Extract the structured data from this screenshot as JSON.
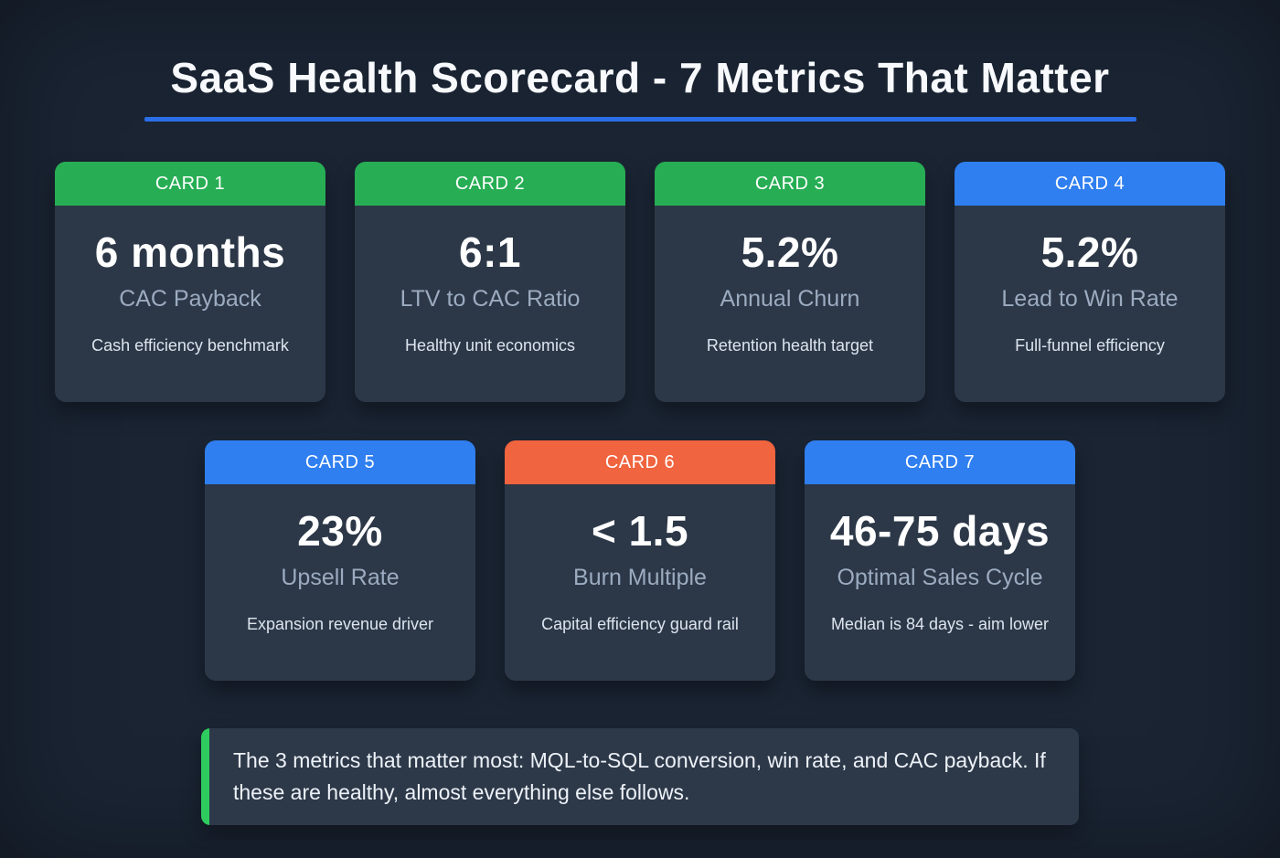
{
  "page": {
    "title": "SaaS Health Scorecard - 7 Metrics That Matter"
  },
  "colors": {
    "background": "#1a2433",
    "card_body": "#2c3848",
    "green": "#27ae54",
    "blue": "#2f7ff0",
    "orange": "#f0643f",
    "underline": "#2b6fe8",
    "label": "#9cabc0",
    "callout_bg": "#2d3949",
    "callout_bar": "#2ecc5e"
  },
  "cards": [
    {
      "header": "CARD 1",
      "header_color": "green",
      "value": "6 months",
      "label": "CAC Payback",
      "description": "Cash efficiency benchmark"
    },
    {
      "header": "CARD 2",
      "header_color": "green",
      "value": "6:1",
      "label": "LTV to CAC Ratio",
      "description": "Healthy unit economics"
    },
    {
      "header": "CARD 3",
      "header_color": "green",
      "value": "5.2%",
      "label": "Annual Churn",
      "description": "Retention health target"
    },
    {
      "header": "CARD 4",
      "header_color": "blue",
      "value": "5.2%",
      "label": "Lead to Win Rate",
      "description": "Full-funnel efficiency"
    },
    {
      "header": "CARD 5",
      "header_color": "blue",
      "value": "23%",
      "label": "Upsell Rate",
      "description": "Expansion revenue driver"
    },
    {
      "header": "CARD 6",
      "header_color": "orange",
      "value": "< 1.5",
      "label": "Burn Multiple",
      "description": "Capital efficiency guard rail"
    },
    {
      "header": "CARD 7",
      "header_color": "blue",
      "value": "46-75 days",
      "label": "Optimal Sales Cycle",
      "description": "Median is 84 days - aim lower"
    }
  ],
  "callout": {
    "text": "The 3 metrics that matter most: MQL-to-SQL conversion, win rate, and CAC payback. If these are healthy, almost everything else follows."
  }
}
